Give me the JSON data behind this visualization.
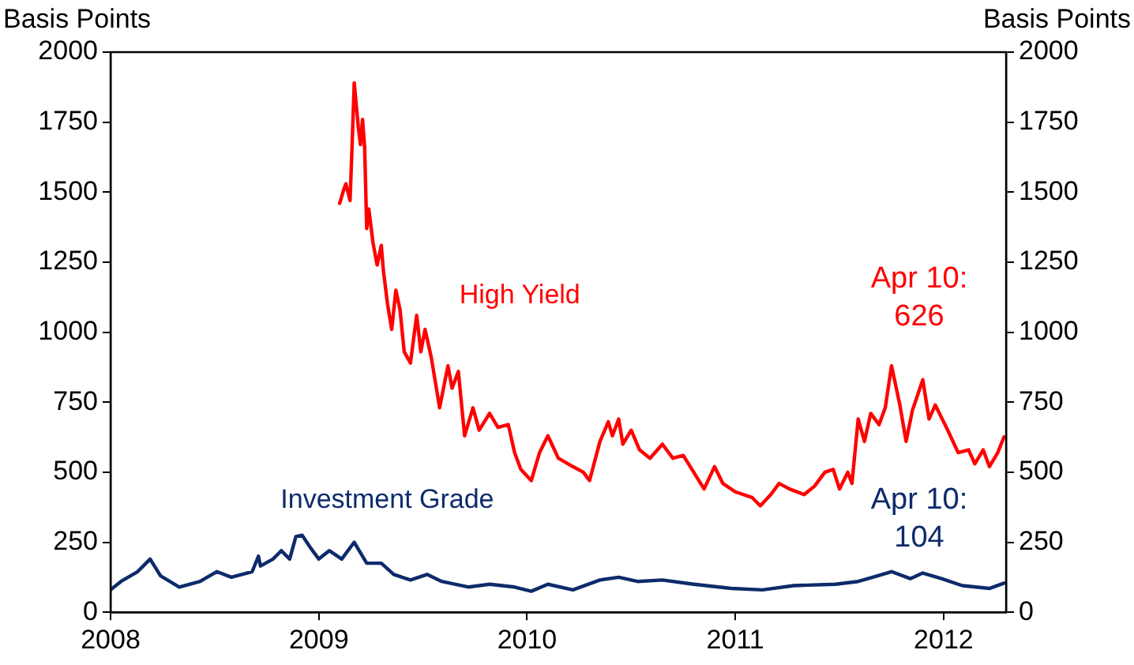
{
  "chart_data": {
    "type": "line",
    "ylabel": "Basis Points",
    "y2label": "Basis Points",
    "xlim": [
      2008,
      2012.3
    ],
    "xticks": [
      2008,
      2009,
      2010,
      2011,
      2012
    ],
    "ylim": [
      0,
      2000
    ],
    "yticks": [
      0,
      250,
      500,
      750,
      1000,
      1250,
      1500,
      1750,
      2000
    ],
    "y2lim": [
      0,
      2000
    ],
    "y2ticks": [
      0,
      250,
      500,
      750,
      1000,
      1250,
      1500,
      1750,
      2000
    ],
    "grid": false,
    "legend": false,
    "marker": "none",
    "line_style": "solid",
    "series": [
      {
        "name": "High Yield",
        "color": "#ff0000",
        "x": [
          2009.1,
          2009.12,
          2009.13,
          2009.15,
          2009.16,
          2009.17,
          2009.19,
          2009.2,
          2009.21,
          2009.22,
          2009.23,
          2009.24,
          2009.26,
          2009.28,
          2009.3,
          2009.31,
          2009.33,
          2009.35,
          2009.37,
          2009.39,
          2009.41,
          2009.44,
          2009.47,
          2009.49,
          2009.51,
          2009.54,
          2009.58,
          2009.62,
          2009.64,
          2009.67,
          2009.7,
          2009.74,
          2009.77,
          2009.82,
          2009.86,
          2009.91,
          2009.94,
          2009.97,
          2010.02,
          2010.06,
          2010.1,
          2010.15,
          2010.22,
          2010.27,
          2010.3,
          2010.35,
          2010.39,
          2010.41,
          2010.44,
          2010.46,
          2010.5,
          2010.54,
          2010.59,
          2010.65,
          2010.7,
          2010.75,
          2010.8,
          2010.85,
          2010.9,
          2010.94,
          2011.0,
          2011.08,
          2011.12,
          2011.17,
          2011.21,
          2011.26,
          2011.33,
          2011.38,
          2011.43,
          2011.47,
          2011.5,
          2011.54,
          2011.56,
          2011.59,
          2011.62,
          2011.65,
          2011.69,
          2011.72,
          2011.75,
          2011.79,
          2011.82,
          2011.85,
          2011.9,
          2011.93,
          2011.96,
          2012.02,
          2012.07,
          2012.12,
          2012.15,
          2012.19,
          2012.22,
          2012.26,
          2012.29
        ],
        "values": [
          1460,
          1510,
          1530,
          1470,
          1670,
          1890,
          1730,
          1670,
          1760,
          1660,
          1370,
          1440,
          1320,
          1240,
          1310,
          1220,
          1100,
          1010,
          1150,
          1080,
          930,
          890,
          1060,
          930,
          1010,
          910,
          730,
          880,
          800,
          860,
          630,
          730,
          650,
          710,
          660,
          670,
          570,
          510,
          470,
          570,
          630,
          550,
          520,
          500,
          470,
          610,
          680,
          630,
          690,
          600,
          650,
          580,
          550,
          600,
          550,
          560,
          500,
          440,
          520,
          460,
          430,
          410,
          380,
          420,
          460,
          440,
          420,
          450,
          500,
          510,
          440,
          500,
          460,
          690,
          610,
          710,
          670,
          730,
          880,
          740,
          610,
          720,
          830,
          690,
          740,
          650,
          570,
          580,
          530,
          580,
          520,
          570,
          626
        ]
      },
      {
        "name": "Investment Grade",
        "color": "#0d2b6b",
        "x": [
          2008.0,
          2008.05,
          2008.13,
          2008.19,
          2008.24,
          2008.33,
          2008.43,
          2008.51,
          2008.58,
          2008.68,
          2008.71,
          2008.72,
          2008.78,
          2008.82,
          2008.86,
          2008.89,
          2008.92,
          2008.96,
          2009.0,
          2009.05,
          2009.11,
          2009.17,
          2009.23,
          2009.3,
          2009.36,
          2009.44,
          2009.52,
          2009.59,
          2009.72,
          2009.82,
          2009.94,
          2010.02,
          2010.1,
          2010.22,
          2010.35,
          2010.44,
          2010.53,
          2010.65,
          2010.8,
          2010.98,
          2011.13,
          2011.28,
          2011.48,
          2011.59,
          2011.66,
          2011.75,
          2011.84,
          2011.9,
          2011.99,
          2012.09,
          2012.22,
          2012.29
        ],
        "values": [
          80,
          110,
          145,
          190,
          130,
          90,
          110,
          145,
          125,
          145,
          200,
          165,
          190,
          220,
          190,
          270,
          275,
          230,
          190,
          220,
          190,
          250,
          175,
          175,
          135,
          115,
          135,
          110,
          90,
          100,
          90,
          75,
          100,
          80,
          115,
          125,
          110,
          115,
          100,
          85,
          80,
          95,
          100,
          110,
          125,
          145,
          120,
          140,
          120,
          95,
          85,
          104
        ]
      }
    ],
    "annotations": [
      "Apr 10:\n626",
      "Apr 10:\n104"
    ]
  }
}
